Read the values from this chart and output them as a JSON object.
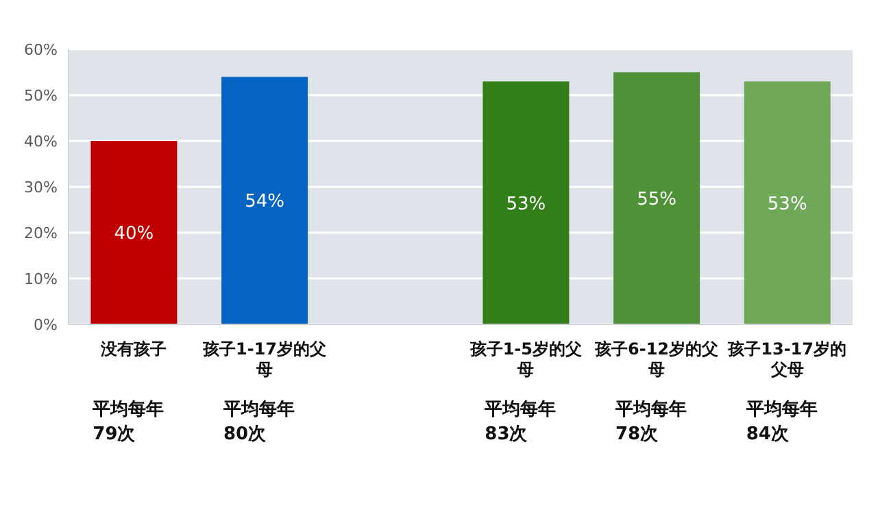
{
  "chart_data": {
    "type": "bar",
    "categories": [
      "没有孩子",
      "孩子1-17岁的父母",
      null,
      "孩子1-5岁的父母",
      "孩子6-12岁的父母",
      "孩子13-17岁的父母"
    ],
    "values": [
      40,
      54,
      null,
      53,
      55,
      53
    ],
    "colors": [
      "#c00000",
      "#0563c1",
      null,
      "#327e18",
      "#4f9136",
      "#70a85a"
    ],
    "value_labels": [
      "40%",
      "54%",
      null,
      "53%",
      "55%",
      "53%"
    ],
    "ylim": [
      0,
      60
    ],
    "yticks": [
      {
        "value": 0,
        "label": "0%"
      },
      {
        "value": 10,
        "label": "10%"
      },
      {
        "value": 20,
        "label": "20%"
      },
      {
        "value": 30,
        "label": "30%"
      },
      {
        "value": 40,
        "label": "40%"
      },
      {
        "value": 50,
        "label": "50%"
      },
      {
        "value": 60,
        "label": "60%"
      }
    ],
    "grid": "y",
    "annotations": [
      "平均每年 79次",
      "平均每年 80次",
      "平均每年 83次",
      "平均每年 78次",
      "平均每年 84次"
    ]
  }
}
